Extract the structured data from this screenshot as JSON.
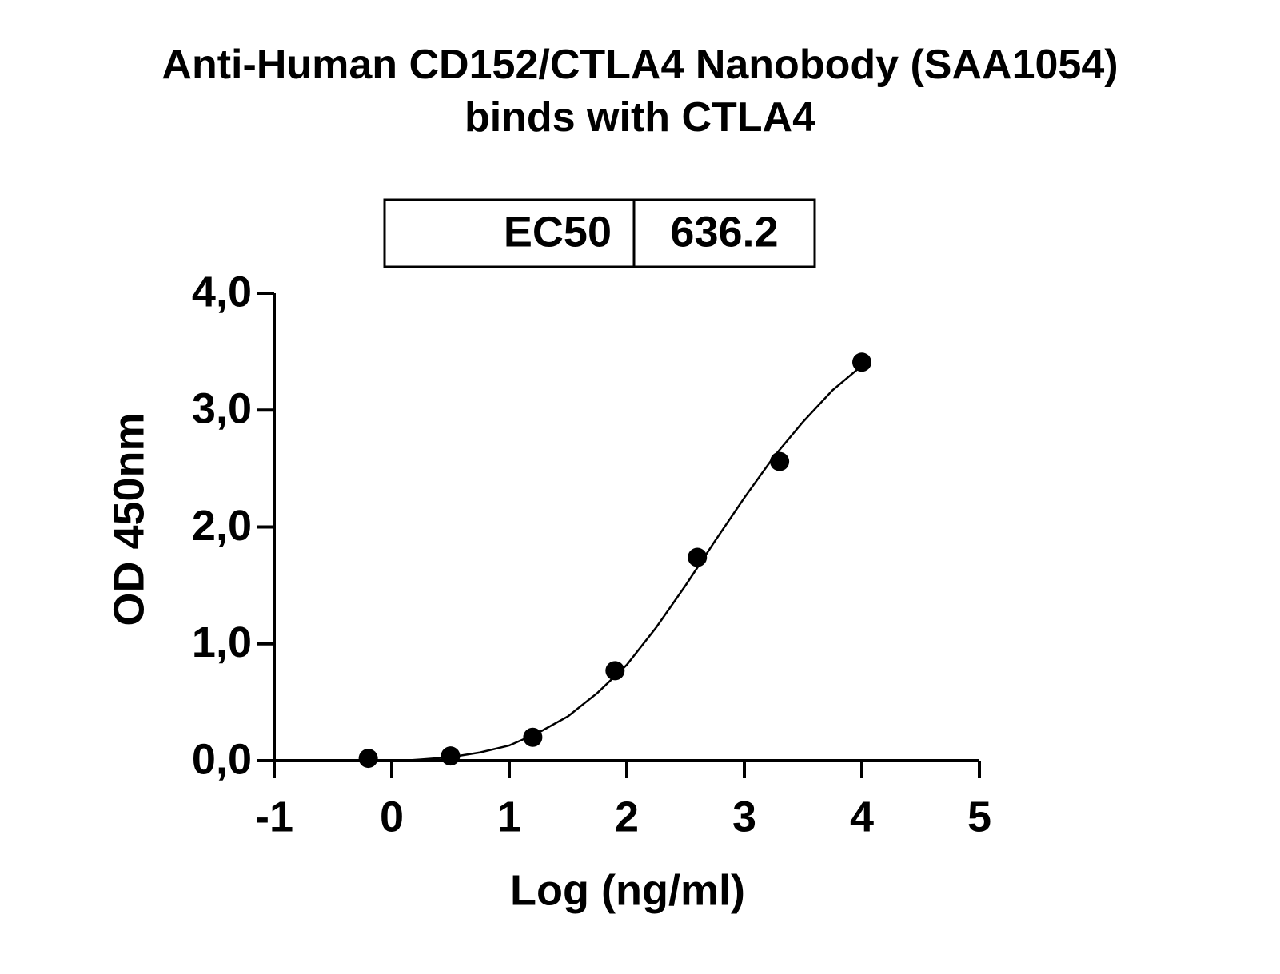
{
  "chart_data": {
    "type": "scatter",
    "title": "Anti-Human CD152/CTLA4 Nanobody (SAA1054)\nbinds with CTLA4",
    "x_label": "Log (ng/ml)",
    "y_label": "OD 450nm",
    "ec50_table": {
      "label": "EC50",
      "value": 636.2
    },
    "x": [
      -0.2,
      0.5,
      1.2,
      1.9,
      2.6,
      3.3,
      4.0
    ],
    "values": [
      0.02,
      0.04,
      0.2,
      0.77,
      1.74,
      2.56,
      3.41
    ],
    "color": "#000000",
    "fit": {
      "x": [
        0.1,
        0.25,
        0.5,
        0.75,
        1.0,
        1.25,
        1.5,
        1.75,
        2.0,
        2.25,
        2.5,
        2.75,
        3.0,
        3.25,
        3.5,
        3.75,
        4.0
      ],
      "y": [
        0.0,
        0.01,
        0.03,
        0.07,
        0.13,
        0.24,
        0.38,
        0.58,
        0.82,
        1.14,
        1.5,
        1.88,
        2.25,
        2.6,
        2.9,
        3.17,
        3.38
      ]
    },
    "xlim": [
      -1,
      5
    ],
    "xticks": [
      -1,
      0,
      1,
      2,
      3,
      4,
      5
    ],
    "ylim": [
      0,
      4
    ],
    "yticks": [
      {
        "value": 0,
        "label": "0,0"
      },
      {
        "value": 1,
        "label": "1,0"
      },
      {
        "value": 2,
        "label": "2,0"
      },
      {
        "value": 3,
        "label": "3,0"
      },
      {
        "value": 4,
        "label": "4,0"
      }
    ]
  }
}
